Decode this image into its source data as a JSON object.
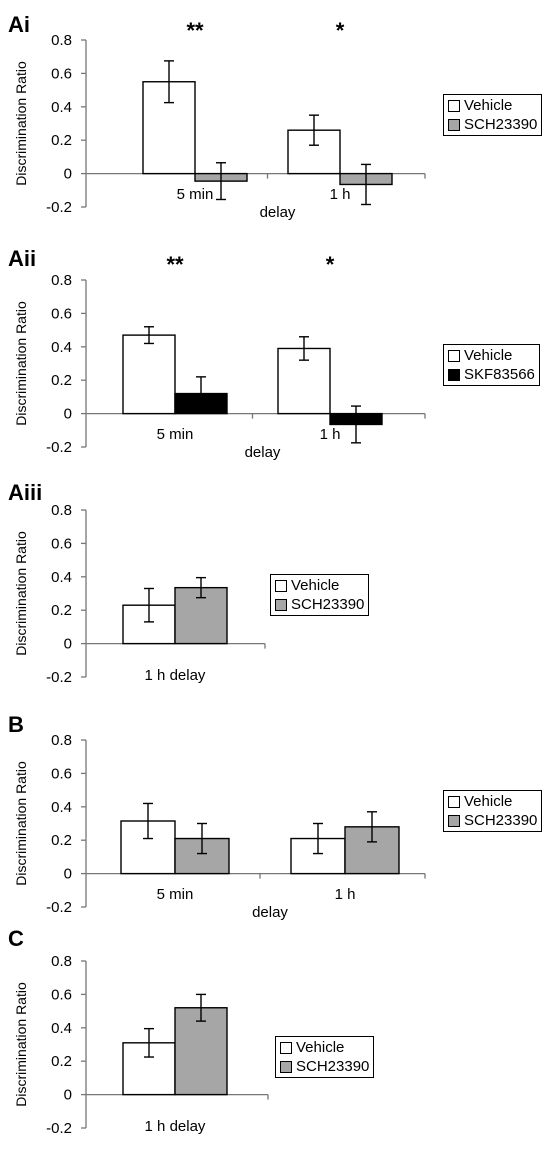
{
  "chart_data": [
    {
      "panel_label": "Ai",
      "type": "bar",
      "ylabel": "Discrimination Ratio",
      "xlabel": "delay",
      "ylim": [
        -0.2,
        0.8
      ],
      "yticks": [
        "0.8",
        "0.6",
        "0.4",
        "0.2",
        "0",
        "-0.2"
      ],
      "categories": [
        "5 min",
        "1 h"
      ],
      "series": [
        {
          "name": "Vehicle",
          "color": "#ffffff",
          "values": [
            0.55,
            0.26
          ],
          "errors": [
            0.125,
            0.09
          ]
        },
        {
          "name": "SCH23390",
          "color": "#a6a6a6",
          "values": [
            -0.045,
            -0.065
          ],
          "errors": [
            0.11,
            0.12
          ]
        }
      ],
      "significance": [
        "**",
        "*"
      ],
      "legend_position": "right"
    },
    {
      "panel_label": "Aii",
      "type": "bar",
      "ylabel": "Discrimination Ratio",
      "xlabel": "delay",
      "ylim": [
        -0.2,
        0.8
      ],
      "yticks": [
        "0.8",
        "0.6",
        "0.4",
        "0.2",
        "0",
        "-0.2"
      ],
      "categories": [
        "5 min",
        "1 h"
      ],
      "series": [
        {
          "name": "Vehicle",
          "color": "#ffffff",
          "values": [
            0.47,
            0.39
          ],
          "errors": [
            0.05,
            0.07
          ]
        },
        {
          "name": "SKF83566",
          "color": "#000000",
          "values": [
            0.12,
            -0.065
          ],
          "errors": [
            0.1,
            0.11
          ]
        }
      ],
      "significance": [
        "**",
        "*"
      ],
      "legend_position": "right"
    },
    {
      "panel_label": "Aiii",
      "type": "bar",
      "ylabel": "Discrimination Ratio",
      "xlabel": "",
      "ylim": [
        -0.2,
        0.8
      ],
      "yticks": [
        "0.8",
        "0.6",
        "0.4",
        "0.2",
        "0",
        "-0.2"
      ],
      "categories": [
        "1 h delay"
      ],
      "series": [
        {
          "name": "Vehicle",
          "color": "#ffffff",
          "values": [
            0.23
          ],
          "errors": [
            0.1
          ]
        },
        {
          "name": "SCH23390",
          "color": "#a6a6a6",
          "values": [
            0.335
          ],
          "errors": [
            0.06
          ]
        }
      ],
      "significance": [
        ""
      ],
      "legend_position": "right"
    },
    {
      "panel_label": "B",
      "type": "bar",
      "ylabel": "Discrimination Ratio",
      "xlabel": "delay",
      "ylim": [
        -0.2,
        0.8
      ],
      "yticks": [
        "0.8",
        "0.6",
        "0.4",
        "0.2",
        "0",
        "-0.2"
      ],
      "categories": [
        "5 min",
        "1 h"
      ],
      "series": [
        {
          "name": "Vehicle",
          "color": "#ffffff",
          "values": [
            0.315,
            0.21
          ],
          "errors": [
            0.105,
            0.09
          ]
        },
        {
          "name": "SCH23390",
          "color": "#a6a6a6",
          "values": [
            0.21,
            0.28
          ],
          "errors": [
            0.09,
            0.09
          ]
        }
      ],
      "significance": [
        "",
        ""
      ],
      "legend_position": "right"
    },
    {
      "panel_label": "C",
      "type": "bar",
      "ylabel": "Discrimination Ratio",
      "xlabel": "",
      "ylim": [
        -0.2,
        0.8
      ],
      "yticks": [
        "0.8",
        "0.6",
        "0.4",
        "0.2",
        "0",
        "-0.2"
      ],
      "categories": [
        "1 h delay"
      ],
      "series": [
        {
          "name": "Vehicle",
          "color": "#ffffff",
          "values": [
            0.31
          ],
          "errors": [
            0.085
          ]
        },
        {
          "name": "SCH23390",
          "color": "#a6a6a6",
          "values": [
            0.52
          ],
          "errors": [
            0.08
          ]
        }
      ],
      "significance": [
        ""
      ],
      "legend_position": "right"
    }
  ]
}
